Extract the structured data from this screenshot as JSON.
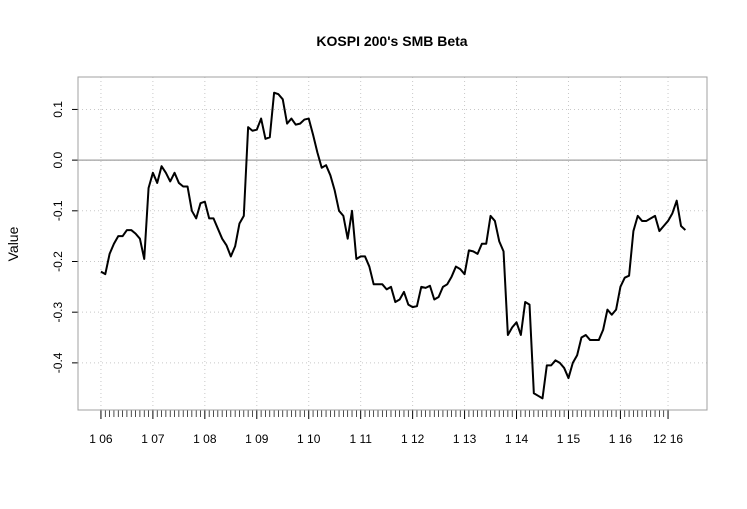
{
  "chart_data": {
    "type": "line",
    "title": "KOSPI 200's SMB Beta",
    "y_label": "Value",
    "x": [
      0,
      1,
      2,
      3,
      4,
      5,
      6,
      7,
      8,
      9,
      10,
      11,
      12,
      13,
      14,
      15,
      16,
      17,
      18,
      19,
      20,
      21,
      22,
      23,
      24,
      25,
      26,
      27,
      28,
      29,
      30,
      31,
      32,
      33,
      34,
      35,
      36,
      37,
      38,
      39,
      40,
      41,
      42,
      43,
      44,
      45,
      46,
      47,
      48,
      49,
      50,
      51,
      52,
      53,
      54,
      55,
      56,
      57,
      58,
      59,
      60,
      61,
      62,
      63,
      64,
      65,
      66,
      67,
      68,
      69,
      70,
      71,
      72,
      73,
      74,
      75,
      76,
      77,
      78,
      79,
      80,
      81,
      82,
      83,
      84,
      85,
      86,
      87,
      88,
      89,
      90,
      91,
      92,
      93,
      94,
      95,
      96,
      97,
      98,
      99,
      100,
      101,
      102,
      103,
      104,
      105,
      106,
      107,
      108,
      109,
      110,
      111,
      112,
      113,
      114,
      115,
      116,
      117,
      118,
      119,
      120,
      121,
      122,
      123,
      124,
      125,
      126,
      127,
      128,
      129,
      130,
      131,
      132,
      133,
      134,
      135
    ],
    "series": [
      {
        "name": "SMB Beta",
        "color": "#000000",
        "values": [
          -0.22,
          -0.225,
          -0.185,
          -0.165,
          -0.15,
          -0.15,
          -0.138,
          -0.138,
          -0.145,
          -0.155,
          -0.195,
          -0.055,
          -0.025,
          -0.045,
          -0.012,
          -0.025,
          -0.042,
          -0.025,
          -0.045,
          -0.052,
          -0.052,
          -0.1,
          -0.115,
          -0.085,
          -0.082,
          -0.115,
          -0.115,
          -0.135,
          -0.155,
          -0.168,
          -0.19,
          -0.17,
          -0.125,
          -0.11,
          0.065,
          0.058,
          0.06,
          0.082,
          0.042,
          0.045,
          0.133,
          0.13,
          0.12,
          0.072,
          0.082,
          0.07,
          0.072,
          0.08,
          0.082,
          0.05,
          0.015,
          -0.015,
          -0.01,
          -0.03,
          -0.06,
          -0.1,
          -0.11,
          -0.155,
          -0.1,
          -0.195,
          -0.19,
          -0.19,
          -0.21,
          -0.245,
          -0.245,
          -0.245,
          -0.255,
          -0.25,
          -0.28,
          -0.275,
          -0.26,
          -0.285,
          -0.29,
          -0.288,
          -0.25,
          -0.252,
          -0.248,
          -0.275,
          -0.27,
          -0.25,
          -0.245,
          -0.23,
          -0.21,
          -0.215,
          -0.225,
          -0.178,
          -0.18,
          -0.185,
          -0.165,
          -0.165,
          -0.11,
          -0.12,
          -0.16,
          -0.18,
          -0.345,
          -0.33,
          -0.32,
          -0.345,
          -0.28,
          -0.285,
          -0.46,
          -0.465,
          -0.47,
          -0.405,
          -0.405,
          -0.395,
          -0.4,
          -0.41,
          -0.43,
          -0.4,
          -0.385,
          -0.35,
          -0.345,
          -0.355,
          -0.355,
          -0.355,
          -0.335,
          -0.295,
          -0.305,
          -0.295,
          -0.25,
          -0.232,
          -0.228,
          -0.14,
          -0.11,
          -0.12,
          -0.12,
          -0.115,
          -0.11,
          -0.14,
          -0.13,
          -0.12,
          -0.105,
          -0.08,
          -0.13,
          -0.138
        ]
      }
    ],
    "xlim": [
      -5.3,
      140
    ],
    "xticks": [
      {
        "value": 0,
        "label": "1 06"
      },
      {
        "value": 12,
        "label": "1 07"
      },
      {
        "value": 24,
        "label": "1 08"
      },
      {
        "value": 36,
        "label": "1 09"
      },
      {
        "value": 48,
        "label": "1 10"
      },
      {
        "value": 60,
        "label": "1 11"
      },
      {
        "value": 72,
        "label": "1 12"
      },
      {
        "value": 84,
        "label": "1 13"
      },
      {
        "value": 96,
        "label": "1 14"
      },
      {
        "value": 108,
        "label": "1 15"
      },
      {
        "value": 120,
        "label": "1 16"
      },
      {
        "value": 131,
        "label": "12 16"
      }
    ],
    "ylim": [
      -0.493,
      0.164
    ],
    "yticks": [
      -0.4,
      -0.3,
      -0.2,
      -0.1,
      {
        "value": 0,
        "label": "0.0"
      },
      0.1
    ],
    "reference_line": 0,
    "grid": true
  }
}
